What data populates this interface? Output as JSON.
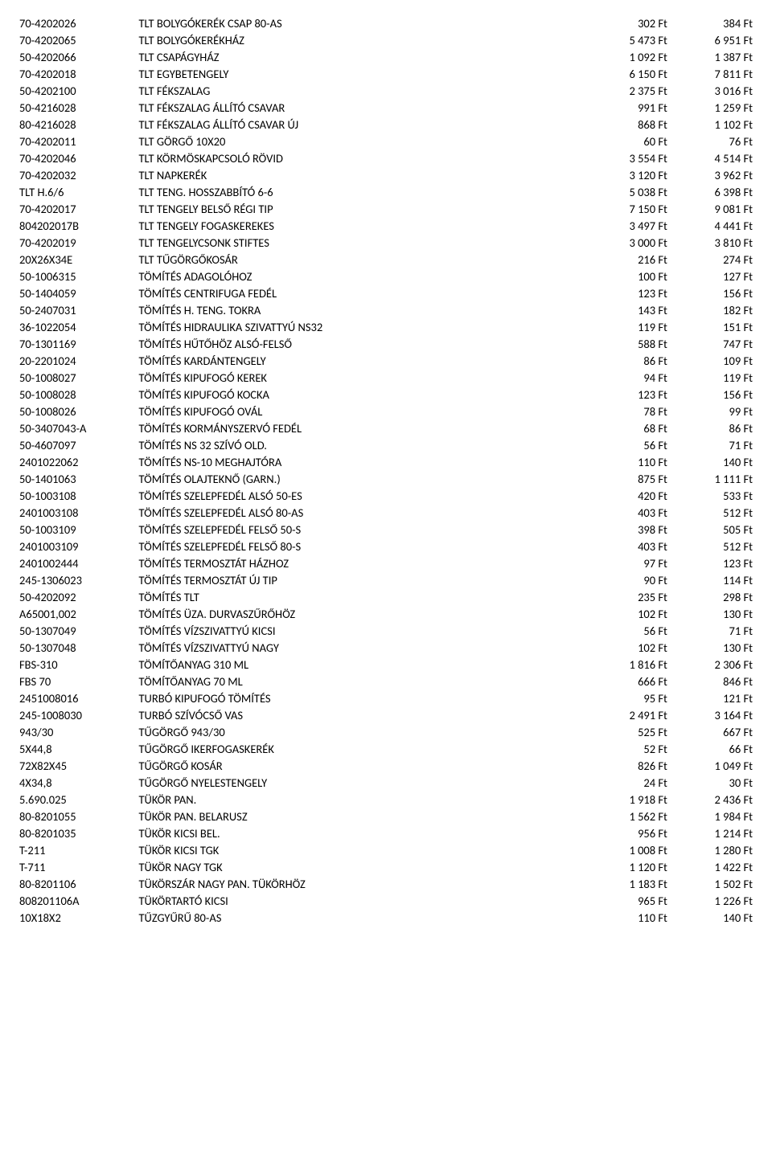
{
  "rows": [
    {
      "code": "70-4202026",
      "desc": "TLT BOLYGÓKERÉK CSAP 80-AS",
      "p1": "302 Ft",
      "p2": "384 Ft"
    },
    {
      "code": "70-4202065",
      "desc": "TLT BOLYGÓKERÉKHÁZ",
      "p1": "5 473 Ft",
      "p2": "6 951 Ft"
    },
    {
      "code": "50-4202066",
      "desc": "TLT CSAPÁGYHÁZ",
      "p1": "1 092 Ft",
      "p2": "1 387 Ft"
    },
    {
      "code": "70-4202018",
      "desc": "TLT EGYBETENGELY",
      "p1": "6 150 Ft",
      "p2": "7 811 Ft"
    },
    {
      "code": "50-4202100",
      "desc": "TLT FÉKSZALAG",
      "p1": "2 375 Ft",
      "p2": "3 016 Ft"
    },
    {
      "code": "50-4216028",
      "desc": "TLT FÉKSZALAG ÁLLÍTÓ CSAVAR",
      "p1": "991 Ft",
      "p2": "1 259 Ft"
    },
    {
      "code": "80-4216028",
      "desc": "TLT FÉKSZALAG ÁLLÍTÓ CSAVAR ÚJ",
      "p1": "868 Ft",
      "p2": "1 102 Ft"
    },
    {
      "code": "70-4202011",
      "desc": "TLT GÖRGŐ 10X20",
      "p1": "60 Ft",
      "p2": "76 Ft"
    },
    {
      "code": "70-4202046",
      "desc": "TLT KÖRMÖSKAPCSOLÓ RÖVID",
      "p1": "3 554 Ft",
      "p2": "4 514 Ft"
    },
    {
      "code": "70-4202032",
      "desc": "TLT NAPKERÉK",
      "p1": "3 120 Ft",
      "p2": "3 962 Ft"
    },
    {
      "code": "TLT H.6/6",
      "desc": "TLT TENG. HOSSZABBÍTÓ 6-6",
      "p1": "5 038 Ft",
      "p2": "6 398 Ft"
    },
    {
      "code": "70-4202017",
      "desc": "TLT TENGELY BELSŐ RÉGI TIP",
      "p1": "7 150 Ft",
      "p2": "9 081 Ft"
    },
    {
      "code": "804202017B",
      "desc": "TLT TENGELY FOGASKEREKES",
      "p1": "3 497 Ft",
      "p2": "4 441 Ft"
    },
    {
      "code": "70-4202019",
      "desc": "TLT TENGELYCSONK STIFTES",
      "p1": "3 000 Ft",
      "p2": "3 810 Ft"
    },
    {
      "code": "20X26X34E",
      "desc": "TLT TŰGÖRGŐKOSÁR",
      "p1": "216 Ft",
      "p2": "274 Ft"
    },
    {
      "code": "50-1006315",
      "desc": "TÖMÍTÉS ADAGOLÓHOZ",
      "p1": "100 Ft",
      "p2": "127 Ft"
    },
    {
      "code": "50-1404059",
      "desc": "TÖMÍTÉS CENTRIFUGA FEDÉL",
      "p1": "123 Ft",
      "p2": "156 Ft"
    },
    {
      "code": "50-2407031",
      "desc": "TÖMÍTÉS H. TENG. TOKRA",
      "p1": "143 Ft",
      "p2": "182 Ft"
    },
    {
      "code": "36-1022054",
      "desc": "TÖMÍTÉS HIDRAULIKA SZIVATTYÚ NS32",
      "p1": "119 Ft",
      "p2": "151 Ft"
    },
    {
      "code": "70-1301169",
      "desc": "TÖMÍTÉS HŰTŐHÖZ ALSÓ-FELSŐ",
      "p1": "588 Ft",
      "p2": "747 Ft"
    },
    {
      "code": "20-2201024",
      "desc": "TÖMÍTÉS KARDÁNTENGELY",
      "p1": "86 Ft",
      "p2": "109 Ft"
    },
    {
      "code": "50-1008027",
      "desc": "TÖMÍTÉS KIPUFOGÓ KEREK",
      "p1": "94 Ft",
      "p2": "119 Ft"
    },
    {
      "code": "50-1008028",
      "desc": "TÖMÍTÉS KIPUFOGÓ KOCKA",
      "p1": "123 Ft",
      "p2": "156 Ft"
    },
    {
      "code": "50-1008026",
      "desc": "TÖMÍTÉS KIPUFOGÓ OVÁL",
      "p1": "78 Ft",
      "p2": "99 Ft"
    },
    {
      "code": "50-3407043-A",
      "desc": "TÖMÍTÉS KORMÁNYSZERVÓ FEDÉL",
      "p1": "68 Ft",
      "p2": "86 Ft"
    },
    {
      "code": "50-4607097",
      "desc": "TÖMÍTÉS NS 32 SZÍVÓ OLD.",
      "p1": "56 Ft",
      "p2": "71 Ft"
    },
    {
      "code": "2401022062",
      "desc": "TÖMÍTÉS NS-10 MEGHAJTÓRA",
      "p1": "110 Ft",
      "p2": "140 Ft"
    },
    {
      "code": "50-1401063",
      "desc": "TÖMÍTÉS OLAJTEKNŐ (GARN.)",
      "p1": "875 Ft",
      "p2": "1 111 Ft"
    },
    {
      "code": "50-1003108",
      "desc": "TÖMÍTÉS SZELEPFEDÉL ALSÓ 50-ES",
      "p1": "420 Ft",
      "p2": "533 Ft"
    },
    {
      "code": "2401003108",
      "desc": "TÖMÍTÉS SZELEPFEDÉL ALSÓ 80-AS",
      "p1": "403 Ft",
      "p2": "512 Ft"
    },
    {
      "code": "50-1003109",
      "desc": "TÖMÍTÉS SZELEPFEDÉL FELSŐ 50-S",
      "p1": "398 Ft",
      "p2": "505 Ft"
    },
    {
      "code": "2401003109",
      "desc": "TÖMÍTÉS SZELEPFEDÉL FELSŐ 80-S",
      "p1": "403 Ft",
      "p2": "512 Ft"
    },
    {
      "code": "2401002444",
      "desc": "TÖMÍTÉS TERMOSZTÁT HÁZHOZ",
      "p1": "97 Ft",
      "p2": "123 Ft"
    },
    {
      "code": "245-1306023",
      "desc": "TÖMÍTÉS TERMOSZTÁT ÚJ TIP",
      "p1": "90 Ft",
      "p2": "114 Ft"
    },
    {
      "code": "50-4202092",
      "desc": "TÖMÍTÉS TLT",
      "p1": "235 Ft",
      "p2": "298 Ft"
    },
    {
      "code": "A65001,002",
      "desc": "TÖMÍTÉS ÜZA. DURVASZŰRŐHÖZ",
      "p1": "102 Ft",
      "p2": "130 Ft"
    },
    {
      "code": "50-1307049",
      "desc": "TÖMÍTÉS VÍZSZIVATTYÚ KICSI",
      "p1": "56 Ft",
      "p2": "71 Ft"
    },
    {
      "code": "50-1307048",
      "desc": "TÖMÍTÉS VÍZSZIVATTYÚ NAGY",
      "p1": "102 Ft",
      "p2": "130 Ft"
    },
    {
      "code": "FBS-310",
      "desc": "TÖMÍTŐANYAG 310 ML",
      "p1": "1 816 Ft",
      "p2": "2 306 Ft"
    },
    {
      "code": "FBS 70",
      "desc": "TÖMÍTŐANYAG 70 ML",
      "p1": "666 Ft",
      "p2": "846 Ft"
    },
    {
      "code": "2451008016",
      "desc": "TURBÓ KIPUFOGÓ TÖMÍTÉS",
      "p1": "95 Ft",
      "p2": "121 Ft"
    },
    {
      "code": "245-1008030",
      "desc": "TURBÓ SZÍVÓCSŐ VAS",
      "p1": "2 491 Ft",
      "p2": "3 164 Ft"
    },
    {
      "code": "943/30",
      "desc": "TŰGÖRGŐ 943/30",
      "p1": "525 Ft",
      "p2": "667 Ft"
    },
    {
      "code": "5X44,8",
      "desc": "TŰGÖRGŐ IKERFOGASKERÉK",
      "p1": "52 Ft",
      "p2": "66 Ft"
    },
    {
      "code": "72X82X45",
      "desc": "TŰGÖRGŐ KOSÁR",
      "p1": "826 Ft",
      "p2": "1 049 Ft"
    },
    {
      "code": "4X34,8",
      "desc": "TŰGÖRGŐ NYELESTENGELY",
      "p1": "24 Ft",
      "p2": "30 Ft"
    },
    {
      "code": "5.690.025",
      "desc": "TÜKÖR  PAN.",
      "p1": "1 918 Ft",
      "p2": "2 436 Ft"
    },
    {
      "code": "80-8201055",
      "desc": "TÜKÖR  PAN. BELARUSZ",
      "p1": "1 562 Ft",
      "p2": "1 984 Ft"
    },
    {
      "code": "80-8201035",
      "desc": "TÜKÖR KICSI BEL.",
      "p1": "956 Ft",
      "p2": "1 214 Ft"
    },
    {
      "code": "T-211",
      "desc": "TÜKÖR KICSI TGK",
      "p1": "1 008 Ft",
      "p2": "1 280 Ft"
    },
    {
      "code": "T-711",
      "desc": "TÜKÖR NAGY TGK",
      "p1": "1 120 Ft",
      "p2": "1 422 Ft"
    },
    {
      "code": "80-8201106",
      "desc": "TÜKÖRSZÁR NAGY PAN. TÜKÖRHÖZ",
      "p1": "1 183 Ft",
      "p2": "1 502 Ft"
    },
    {
      "code": "808201106A",
      "desc": "TÜKÖRTARTÓ KICSI",
      "p1": "965 Ft",
      "p2": "1 226 Ft"
    },
    {
      "code": "10X18X2",
      "desc": "TŰZGYŰRŰ 80-AS",
      "p1": "110 Ft",
      "p2": "140 Ft"
    }
  ]
}
